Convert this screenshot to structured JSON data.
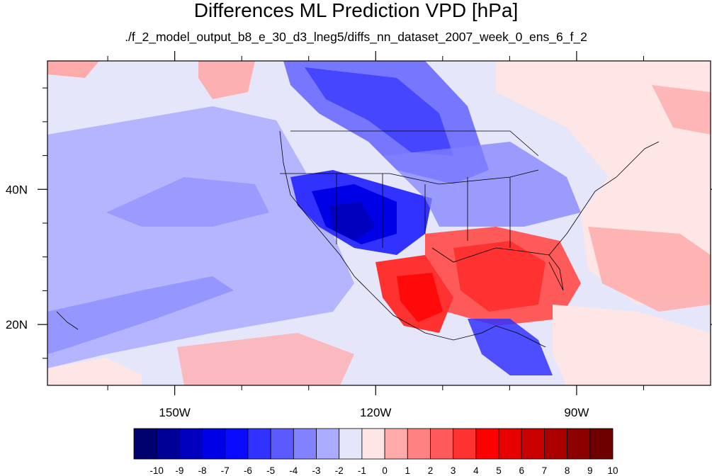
{
  "title": "Differences ML Prediction VPD [hPa]",
  "subtitle": "./f_2_model_output_b8_e_30_d3_lneg5/diffs_nn_dataset_2007_week_0_ens_6_f_2",
  "map": {
    "lon_range": [
      -169,
      -70
    ],
    "lat_range": [
      11,
      59
    ],
    "x_tick_labels": [
      {
        "lon": -150,
        "label": "150W"
      },
      {
        "lon": -120,
        "label": "120W"
      },
      {
        "lon": -90,
        "label": "90W"
      }
    ],
    "y_tick_labels": [
      {
        "lat": 40,
        "label": "40N"
      },
      {
        "lat": 20,
        "label": "20N"
      }
    ],
    "x_minor_ticks": [
      -160,
      -140,
      -130,
      -110,
      -100,
      -80
    ],
    "y_minor_ticks": [
      15,
      25,
      30,
      35,
      45,
      50,
      55
    ]
  },
  "colorbar": {
    "colors": [
      "#00006e",
      "#000096",
      "#0000be",
      "#0000e6",
      "#0a0aff",
      "#3232ff",
      "#5a5aff",
      "#8282ff",
      "#aaaaff",
      "#e6e6fa",
      "#ffe6e6",
      "#ffaaaa",
      "#ff8282",
      "#ff5a5a",
      "#ff3232",
      "#ff0000",
      "#e60000",
      "#c80000",
      "#aa0000",
      "#8c0000",
      "#6e0000"
    ],
    "labels": [
      "-10",
      "-9",
      "-8",
      "-7",
      "-6",
      "-5",
      "-4",
      "-3",
      "-2",
      "-1",
      "0",
      "1",
      "2",
      "3",
      "4",
      "5",
      "6",
      "7",
      "8",
      "9",
      "10"
    ]
  }
}
